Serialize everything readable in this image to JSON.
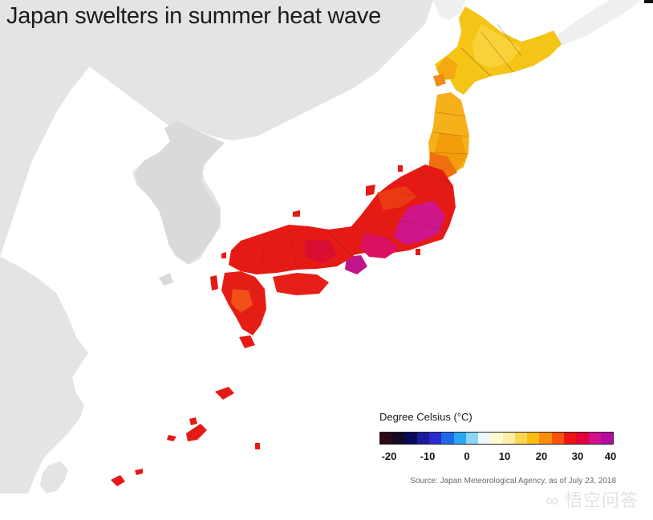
{
  "title": "Japan swelters in summer heat wave",
  "legend": {
    "title": "Degree Celsius (°C)",
    "ticks": [
      "-20",
      "-10",
      "0",
      "10",
      "20",
      "30",
      "40"
    ],
    "colors": [
      "#2a0a14",
      "#140a26",
      "#0a0a5a",
      "#1a1a9a",
      "#2a2ad0",
      "#1e6ae6",
      "#2aa6f2",
      "#8ad6f6",
      "#eef8fc",
      "#fcfcd2",
      "#fceea6",
      "#fcd650",
      "#fcbc14",
      "#fc8c0a",
      "#f8520c",
      "#ee1414",
      "#e2003a",
      "#d2108c",
      "#b40aa0"
    ]
  },
  "source": "Source: Japan Meteorological Agency, as of July 23, 2018",
  "watermark": "∞ 悟空问答",
  "colors": {
    "ocean": "#ffffff",
    "land_gray": "#e4e4e4",
    "hokkaido": "#f5c418",
    "north": "#f7a510",
    "hot": "#e41616",
    "hottest": "#c0158a"
  }
}
